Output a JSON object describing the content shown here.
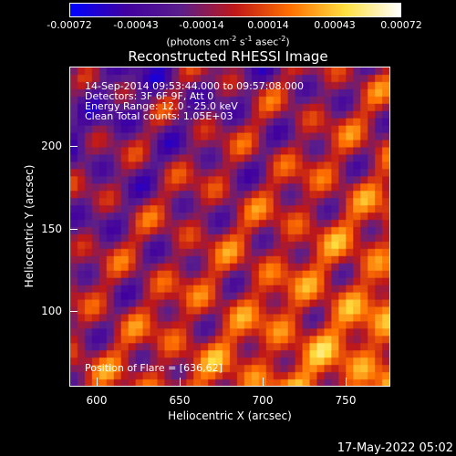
{
  "colorbar": {
    "ticks": [
      "-0.00072",
      "-0.00043",
      "-0.00014",
      "0.00014",
      "0.00043",
      "0.00072"
    ],
    "units_prefix": "(photons cm",
    "units_mid1": " s",
    "units_mid2": " asec",
    "units_suffix": ")",
    "sup_a": "-2",
    "sup_b": "-1",
    "sup_c": "-2"
  },
  "title": "Reconstructed RHESSI Image",
  "info": {
    "line1": "14-Sep-2014 09:53:44.000 to 09:57:08.000",
    "line2": "Detectors: 3F 6F 9F, Att 0",
    "line3": "Energy Range: 12.0 - 25.0 keV",
    "line4": "Clean     Total counts: 1.05E+03",
    "position": "Position of Flare = [636,62]"
  },
  "axes": {
    "xlabel": "Heliocentric X (arcsec)",
    "ylabel": "Heliocentric Y (arcsec)",
    "xticks": [
      "600",
      "650",
      "700",
      "750"
    ],
    "yticks": [
      "100",
      "150",
      "200"
    ]
  },
  "timestamp": "17-May-2022 05:02",
  "colors": {
    "colormap": [
      "#0000ff",
      "#4000a0",
      "#5a1e8c",
      "#c01818",
      "#ff7000",
      "#ffe040",
      "#ffffff"
    ]
  }
}
